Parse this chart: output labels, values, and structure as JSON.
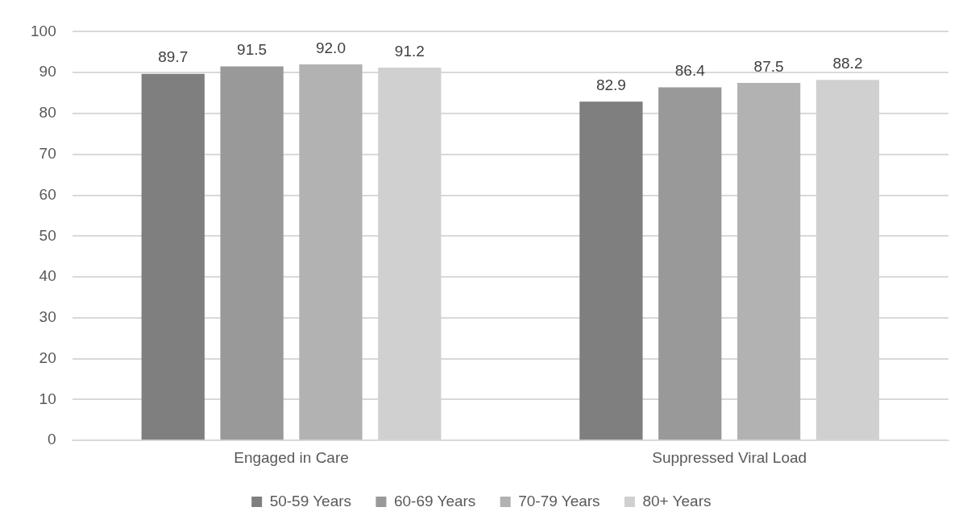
{
  "chart_data": {
    "type": "bar",
    "categories": [
      "Engaged in Care",
      "Suppressed Viral Load"
    ],
    "series": [
      {
        "name": "50-59 Years",
        "color": "#7f7f7f",
        "values": [
          89.7,
          82.9
        ]
      },
      {
        "name": "60-69 Years",
        "color": "#999999",
        "values": [
          91.5,
          86.4
        ]
      },
      {
        "name": "70-79 Years",
        "color": "#b2b2b2",
        "values": [
          92.0,
          87.5
        ]
      },
      {
        "name": "80+ Years",
        "color": "#d0d0d0",
        "values": [
          91.2,
          88.2
        ]
      }
    ],
    "value_labels": [
      [
        "89.7",
        "82.9"
      ],
      [
        "91.5",
        "86.4"
      ],
      [
        "92.0",
        "87.5"
      ],
      [
        "91.2",
        "88.2"
      ]
    ],
    "ylim": [
      0,
      100
    ],
    "yticks": [
      0,
      10,
      20,
      30,
      40,
      50,
      60,
      70,
      80,
      90,
      100
    ],
    "grid": "y",
    "legend": "bottom"
  }
}
